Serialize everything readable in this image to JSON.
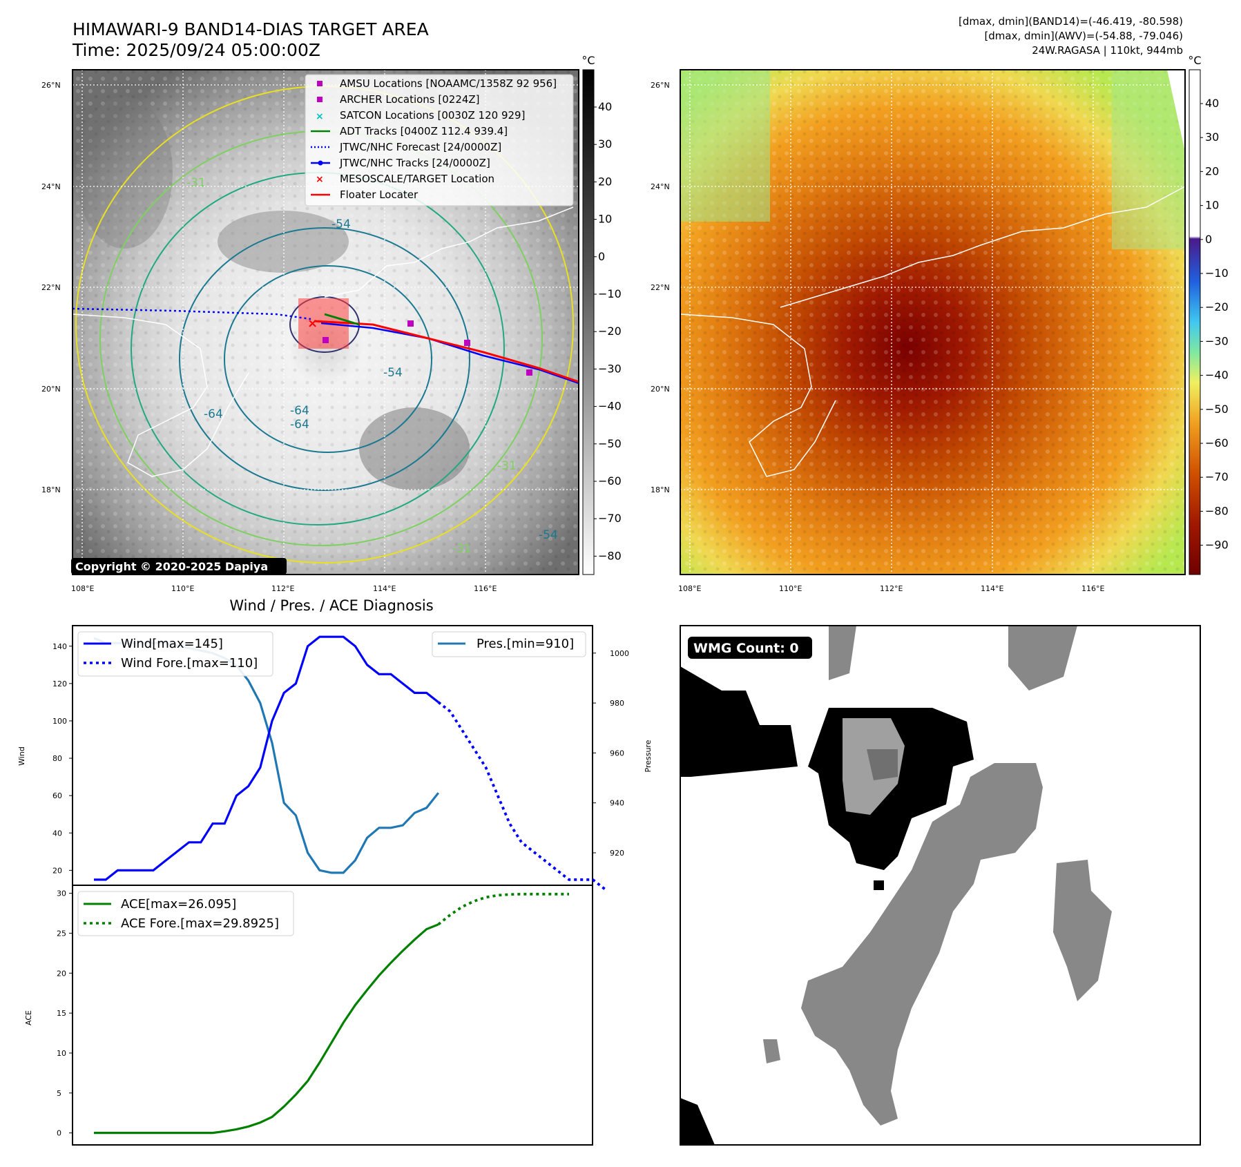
{
  "title": {
    "line1": "HIMAWARI-9 BAND14-DIAS TARGET AREA",
    "line2": "Time: 2025/09/24 05:00:00Z"
  },
  "info": {
    "line1": "[dmax, dmin](BAND14)=(-46.419, -80.598)",
    "line2": "[dmax, dmin](AWV)=(-54.88, -79.046)",
    "line3": "24W.RAGASA | 110kt, 944mb"
  },
  "copyright": "Copyright © 2020-2025 Dapiya",
  "map_axes": {
    "lon_labels": [
      "108°E",
      "110°E",
      "112°E",
      "114°E",
      "116°E"
    ],
    "lat_labels": [
      "26°N",
      "24°N",
      "22°N",
      "20°N",
      "18°N"
    ]
  },
  "colorbar_left": {
    "unit": "°C",
    "ticks": [
      "40",
      "30",
      "20",
      "10",
      "0",
      "−10",
      "−20",
      "−30",
      "−40",
      "−50",
      "−60",
      "−70",
      "−80"
    ]
  },
  "colorbar_right": {
    "unit": "°C",
    "ticks": [
      "40",
      "30",
      "20",
      "10",
      "0",
      "−10",
      "−20",
      "−30",
      "−40",
      "−50",
      "−60",
      "−70",
      "−80",
      "−90"
    ]
  },
  "contour_labels": [
    "-64",
    "-64",
    "-64",
    "-54",
    "-54",
    "-31",
    "-31",
    "-31",
    "-54"
  ],
  "map_legend": [
    {
      "label": "AMSU Locations [NOAAMC/1358Z 92 956]",
      "marker": "square",
      "color": "#c000c0"
    },
    {
      "label": "ARCHER Locations [0224Z]",
      "marker": "square",
      "color": "#c000c0"
    },
    {
      "label": "SATCON Locations [0030Z 120 929]",
      "marker": "x",
      "color": "#00c0c0"
    },
    {
      "label": "ADT Tracks [0400Z 112.4 939.4]",
      "marker": "line",
      "color": "#008000"
    },
    {
      "label": "JTWC/NHC Forecast [24/0000Z]",
      "marker": "dotted",
      "color": "#0000ff"
    },
    {
      "label": "JTWC/NHC Tracks [24/0000Z]",
      "marker": "line-dot",
      "color": "#0000ff"
    },
    {
      "label": "MESOSCALE/TARGET Location",
      "marker": "x",
      "color": "#ff0000"
    },
    {
      "label": "Floater Locater",
      "marker": "line",
      "color": "#ff0000"
    }
  ],
  "diagnosis_title": "Wind / Pres. / ACE Diagnosis",
  "wmg_badge": "WMG Count: 0",
  "chart_data": [
    {
      "type": "line",
      "title": "Wind / Pres. / ACE Diagnosis",
      "ylabel": "Wind",
      "y2label": "Pressure",
      "ylim": [
        12,
        151
      ],
      "y2lim": [
        907,
        1011
      ],
      "yticks": [
        20,
        40,
        60,
        80,
        100,
        120,
        140
      ],
      "y2ticks": [
        920,
        940,
        960,
        980,
        1000
      ],
      "series": [
        {
          "name": "Wind[max=145]",
          "axis": "left",
          "style": "solid",
          "color": "#0000ff",
          "values": [
            15,
            15,
            20,
            20,
            20,
            20,
            25,
            30,
            35,
            35,
            45,
            45,
            60,
            65,
            75,
            100,
            115,
            120,
            140,
            145,
            145,
            145,
            140,
            130,
            125,
            125,
            120,
            115,
            115,
            110
          ]
        },
        {
          "name": "Wind Fore.[max=110]",
          "axis": "left",
          "style": "dotted",
          "color": "#0000ff",
          "values": [
            110,
            105,
            95,
            85,
            75,
            60,
            45,
            35,
            30,
            25,
            20,
            15,
            15,
            15,
            10
          ]
        },
        {
          "name": "Pres.[min=910]",
          "axis": "right",
          "style": "solid",
          "color": "#1f77b4",
          "values": [
            1006,
            1004,
            1004,
            1004,
            1004,
            1004,
            1004,
            1003,
            1002,
            1001,
            1000,
            998,
            995,
            989,
            980,
            964,
            940,
            935,
            920,
            913,
            912,
            912,
            917,
            926,
            930,
            930,
            931,
            936,
            938,
            944
          ]
        }
      ]
    },
    {
      "type": "line",
      "ylabel": "ACE",
      "ylim": [
        -1.5,
        31
      ],
      "yticks": [
        0,
        5,
        10,
        15,
        20,
        25,
        30
      ],
      "series": [
        {
          "name": "ACE[max=26.095]",
          "style": "solid",
          "color": "#008000",
          "values": [
            0,
            0,
            0,
            0,
            0,
            0,
            0,
            0,
            0,
            0,
            0,
            0.2,
            0.45,
            0.8,
            1.3,
            2.0,
            3.3,
            4.8,
            6.5,
            8.8,
            11.3,
            13.8,
            16.0,
            17.9,
            19.7,
            21.3,
            22.8,
            24.2,
            25.5,
            26.1
          ]
        },
        {
          "name": "ACE Fore.[max=29.8925]",
          "style": "dotted",
          "color": "#008000",
          "values": [
            26.1,
            27.3,
            28.3,
            29.0,
            29.5,
            29.75,
            29.85,
            29.89,
            29.89,
            29.89,
            29.89,
            29.89
          ]
        }
      ]
    }
  ]
}
